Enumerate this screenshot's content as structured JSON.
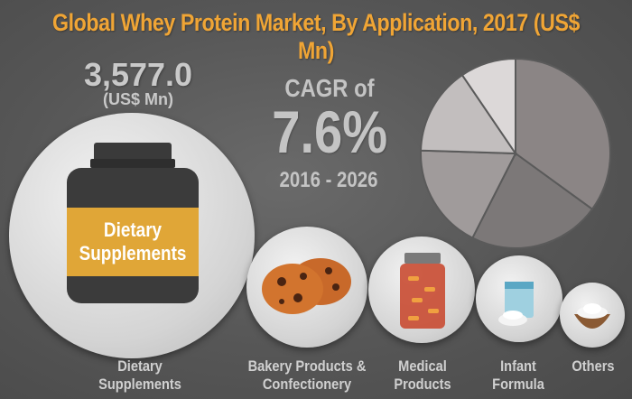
{
  "title": "Global Whey Protein Market, By Application, 2017 (US$ Mn)",
  "highlight": {
    "value": "3,577.0",
    "unit": "(US$ Mn)"
  },
  "cagr": {
    "label": "CAGR of",
    "value": "7.6%",
    "period": "2016 - 2026"
  },
  "jar_label": {
    "line1": "Dietary",
    "line2": "Supplements"
  },
  "categories": [
    {
      "line1": "Dietary",
      "line2": "Supplements",
      "icon": "protein-jar-icon"
    },
    {
      "line1": "Bakery Products &",
      "line2": "Confectionery",
      "icon": "cookies-icon"
    },
    {
      "line1": "Medical",
      "line2": "Products",
      "icon": "pill-jar-icon"
    },
    {
      "line1": "Infant",
      "line2": "Formula",
      "icon": "formula-can-icon"
    },
    {
      "line1": "Others",
      "line2": "",
      "icon": "powder-bowl-icon"
    }
  ],
  "colors": {
    "title": "#f0a535",
    "jar_label": "#e0a637",
    "background": "#585858"
  },
  "chart_data": {
    "type": "pie",
    "categories": [
      "Dietary Supplements",
      "Bakery Products & Confectionery",
      "Medical Products",
      "Infant Formula",
      "Others"
    ],
    "values": [
      35.0,
      22.5,
      18.0,
      15.0,
      9.5
    ],
    "colors": [
      "#8b8585",
      "#7c7878",
      "#a09b9b",
      "#c2bebe",
      "#dcd8d8"
    ]
  }
}
